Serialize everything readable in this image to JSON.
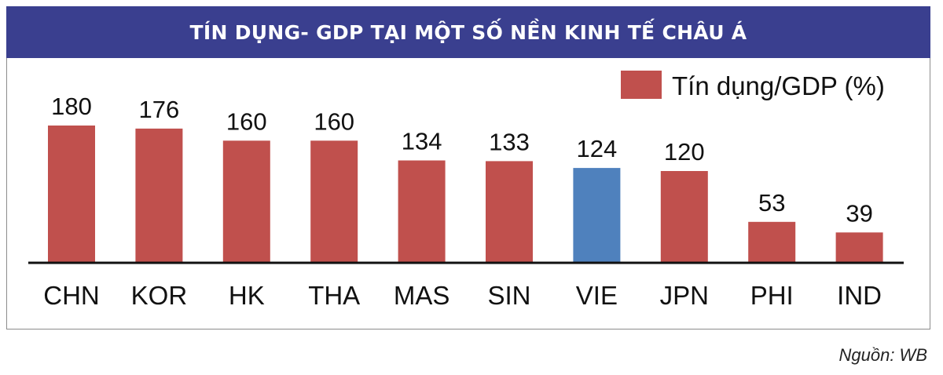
{
  "title": "TÍN DỤNG- GDP TẠI MỘT SỐ NỀN KINH TẾ CHÂU Á",
  "source": "Nguồn: WB",
  "chart_data": {
    "type": "bar",
    "title": "TÍN DỤNG- GDP TẠI MỘT SỐ NỀN KINH TẾ CHÂU Á",
    "categories": [
      "CHN",
      "KOR",
      "HK",
      "THA",
      "MAS",
      "SIN",
      "VIE",
      "JPN",
      "PHI",
      "IND"
    ],
    "series": [
      {
        "name": "Tín dụng/GDP (%)",
        "values": [
          180,
          176,
          160,
          160,
          134,
          133,
          124,
          120,
          53,
          39
        ]
      }
    ],
    "data_labels": [
      "180",
      "176",
      "160",
      "160",
      "134",
      "133",
      "124",
      "120",
      "53",
      "39"
    ],
    "highlight_category": "VIE",
    "colors": {
      "default": "#c0504d",
      "highlight": "#4f81bd",
      "banner": "#3a3f8f"
    },
    "ylim": [
      0,
      180
    ],
    "grid": false,
    "legend_position": "top-right",
    "xlabel": "",
    "ylabel": ""
  }
}
